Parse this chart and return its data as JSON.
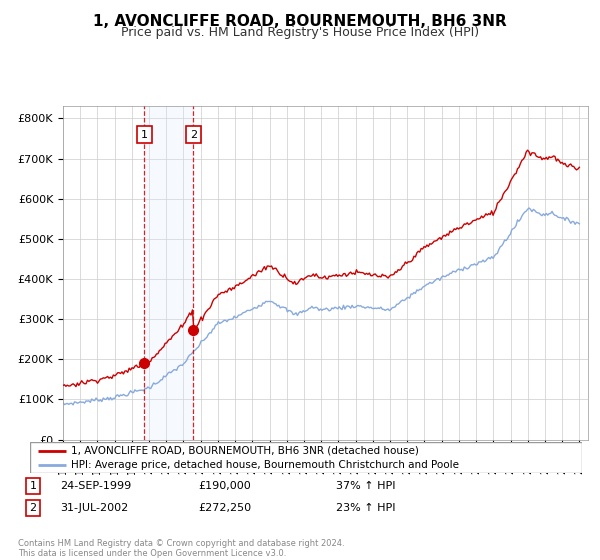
{
  "title": "1, AVONCLIFFE ROAD, BOURNEMOUTH, BH6 3NR",
  "subtitle": "Price paid vs. HM Land Registry's House Price Index (HPI)",
  "legend_line1": "1, AVONCLIFFE ROAD, BOURNEMOUTH, BH6 3NR (detached house)",
  "legend_line2": "HPI: Average price, detached house, Bournemouth Christchurch and Poole",
  "sale1_label": "1",
  "sale1_date": "24-SEP-1999",
  "sale1_price": "£190,000",
  "sale1_hpi": "37% ↑ HPI",
  "sale1_year": 1999.73,
  "sale1_value": 190000,
  "sale2_label": "2",
  "sale2_date": "31-JUL-2002",
  "sale2_price": "£272,250",
  "sale2_hpi": "23% ↑ HPI",
  "sale2_year": 2002.58,
  "sale2_value": 272250,
  "footer": "Contains HM Land Registry data © Crown copyright and database right 2024.\nThis data is licensed under the Open Government Licence v3.0.",
  "red_color": "#cc0000",
  "blue_color": "#88aadd",
  "highlight_color": "#ddeeff",
  "background_color": "#ffffff",
  "grid_color": "#cccccc",
  "ylim": [
    0,
    830000
  ],
  "xlim_start": 1995.0,
  "xlim_end": 2025.5
}
